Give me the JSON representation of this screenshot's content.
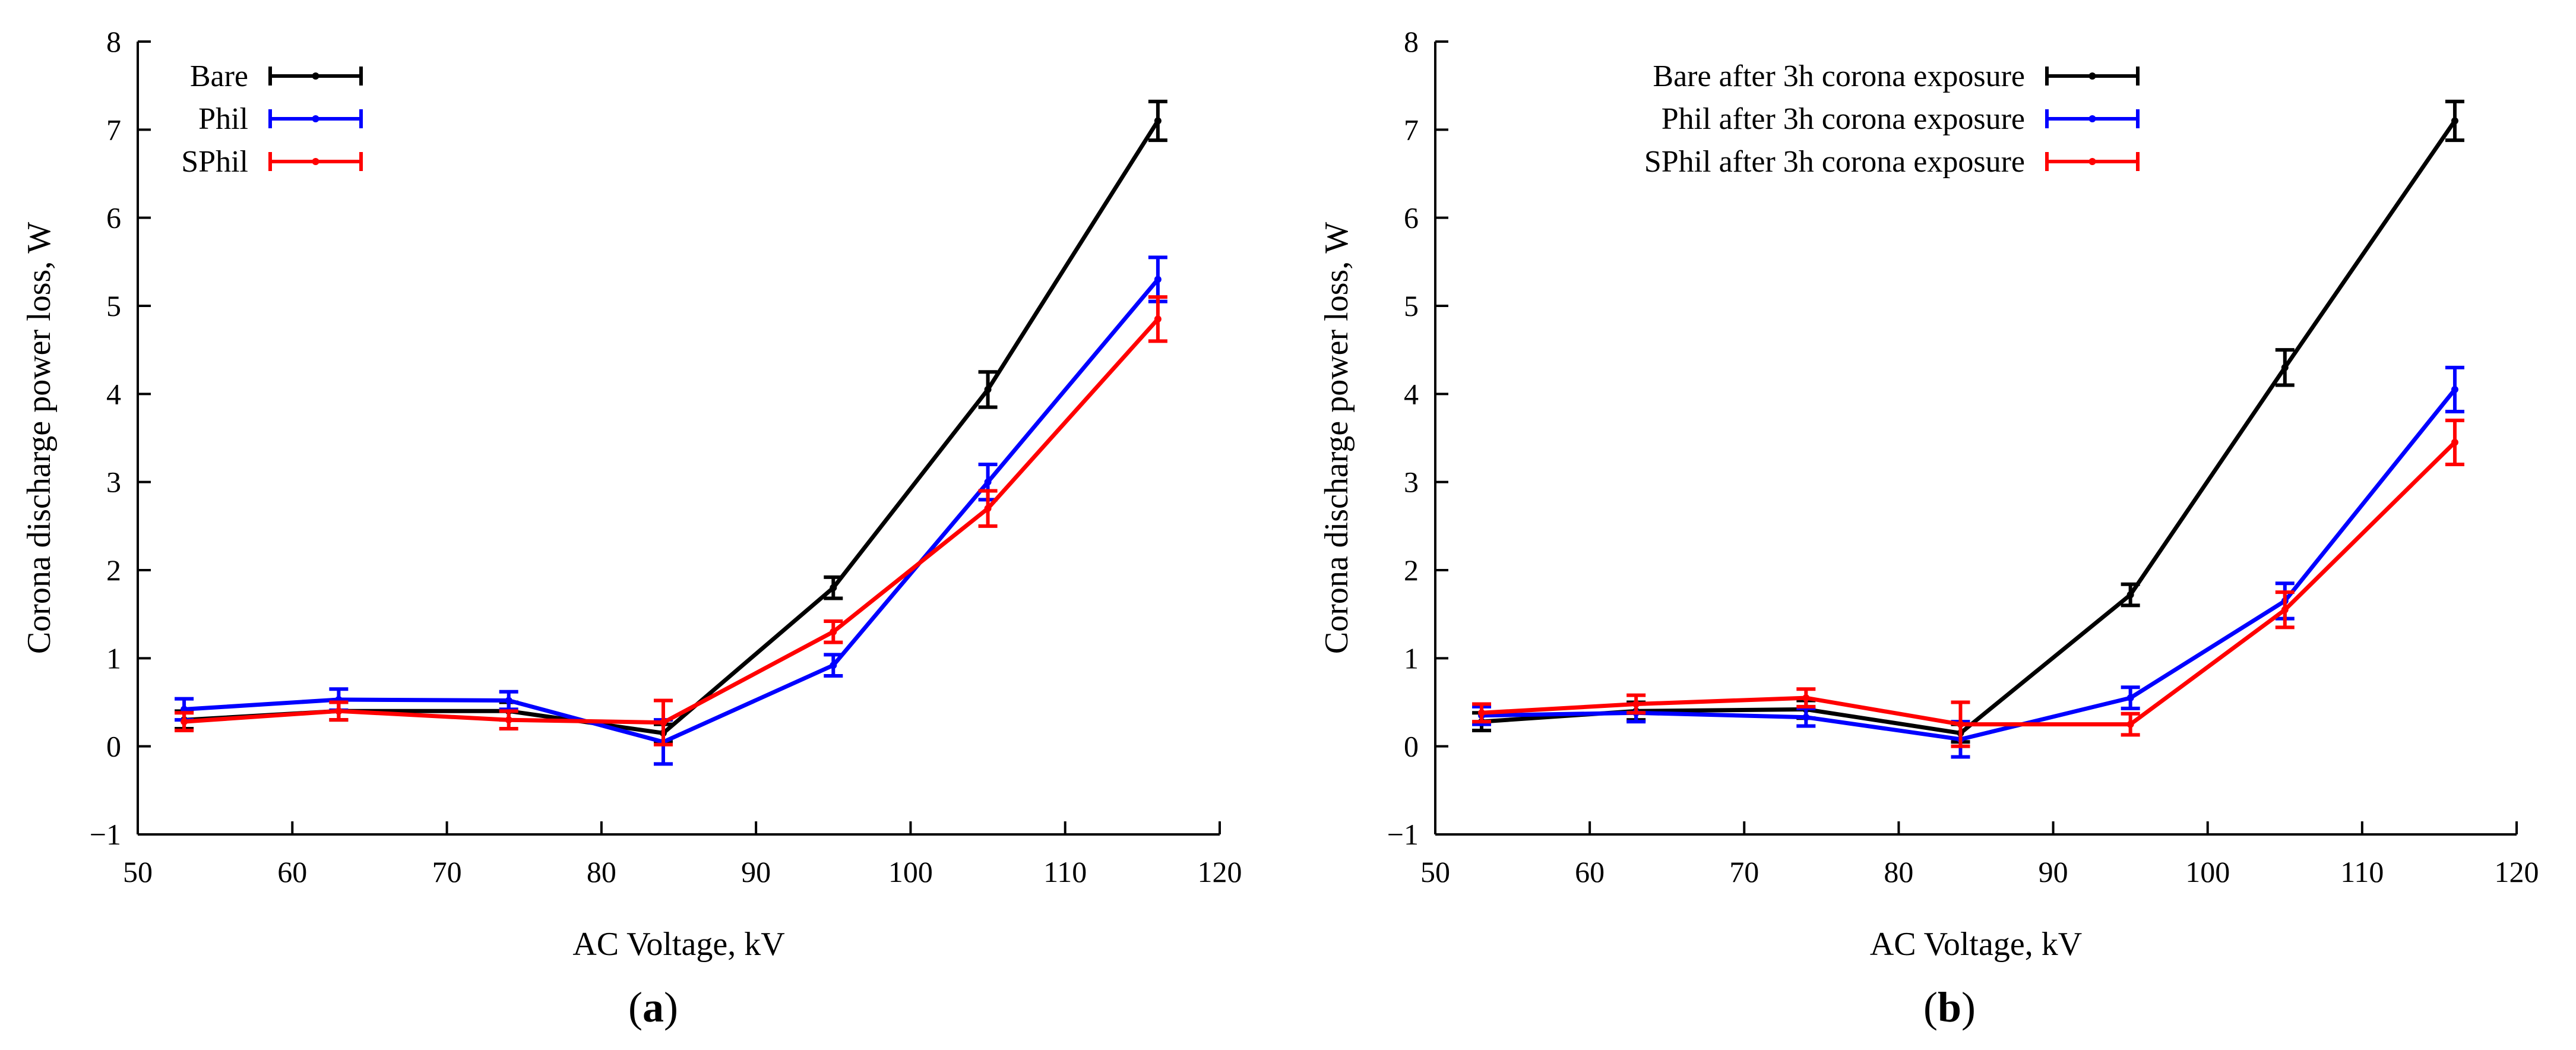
{
  "chart_data": [
    {
      "type": "line",
      "panel_label": "a",
      "xlabel": "AC Voltage, kV",
      "ylabel": "Corona discharge power loss, W",
      "xlim": [
        50,
        120
      ],
      "ylim": [
        -1,
        8
      ],
      "xticks": [
        50,
        60,
        70,
        80,
        90,
        100,
        110,
        120
      ],
      "yticks": [
        -1,
        0,
        1,
        2,
        3,
        4,
        5,
        6,
        7,
        8
      ],
      "legend_position": "top-left",
      "grid": false,
      "x": [
        53,
        63,
        74,
        84,
        95,
        105,
        116
      ],
      "series": [
        {
          "name": "Bare",
          "color": "#000000",
          "values": [
            0.3,
            0.4,
            0.4,
            0.15,
            1.8,
            4.05,
            7.1
          ],
          "errors": [
            0.1,
            0.1,
            0.1,
            0.1,
            0.12,
            0.2,
            0.22
          ]
        },
        {
          "name": "Phil",
          "color": "#0000ff",
          "values": [
            0.42,
            0.53,
            0.52,
            0.05,
            0.92,
            3.0,
            5.3
          ],
          "errors": [
            0.12,
            0.12,
            0.1,
            0.25,
            0.12,
            0.2,
            0.25
          ]
        },
        {
          "name": "SPhil",
          "color": "#ff0000",
          "values": [
            0.28,
            0.4,
            0.3,
            0.27,
            1.3,
            2.7,
            4.85
          ],
          "errors": [
            0.1,
            0.1,
            0.1,
            0.25,
            0.12,
            0.2,
            0.25
          ]
        }
      ]
    },
    {
      "type": "line",
      "panel_label": "b",
      "xlabel": "AC Voltage, kV",
      "ylabel": "Corona discharge power loss, W",
      "xlim": [
        50,
        120
      ],
      "ylim": [
        -1,
        8
      ],
      "xticks": [
        50,
        60,
        70,
        80,
        90,
        100,
        110,
        120
      ],
      "yticks": [
        -1,
        0,
        1,
        2,
        3,
        4,
        5,
        6,
        7,
        8
      ],
      "legend_position": "top-left",
      "grid": false,
      "x": [
        53,
        63,
        74,
        84,
        95,
        105,
        116
      ],
      "series": [
        {
          "name": "Bare after 3h corona exposure",
          "color": "#000000",
          "values": [
            0.28,
            0.4,
            0.42,
            0.15,
            1.72,
            4.3,
            7.1
          ],
          "errors": [
            0.1,
            0.1,
            0.1,
            0.1,
            0.12,
            0.2,
            0.22
          ]
        },
        {
          "name": "Phil after 3h corona exposure",
          "color": "#0000ff",
          "values": [
            0.35,
            0.38,
            0.33,
            0.08,
            0.55,
            1.65,
            4.05
          ],
          "errors": [
            0.1,
            0.1,
            0.1,
            0.2,
            0.12,
            0.2,
            0.25
          ]
        },
        {
          "name": "SPhil after 3h corona exposure",
          "color": "#ff0000",
          "values": [
            0.38,
            0.48,
            0.55,
            0.25,
            0.25,
            1.55,
            3.45
          ],
          "errors": [
            0.1,
            0.1,
            0.1,
            0.25,
            0.12,
            0.2,
            0.25
          ]
        }
      ]
    }
  ]
}
